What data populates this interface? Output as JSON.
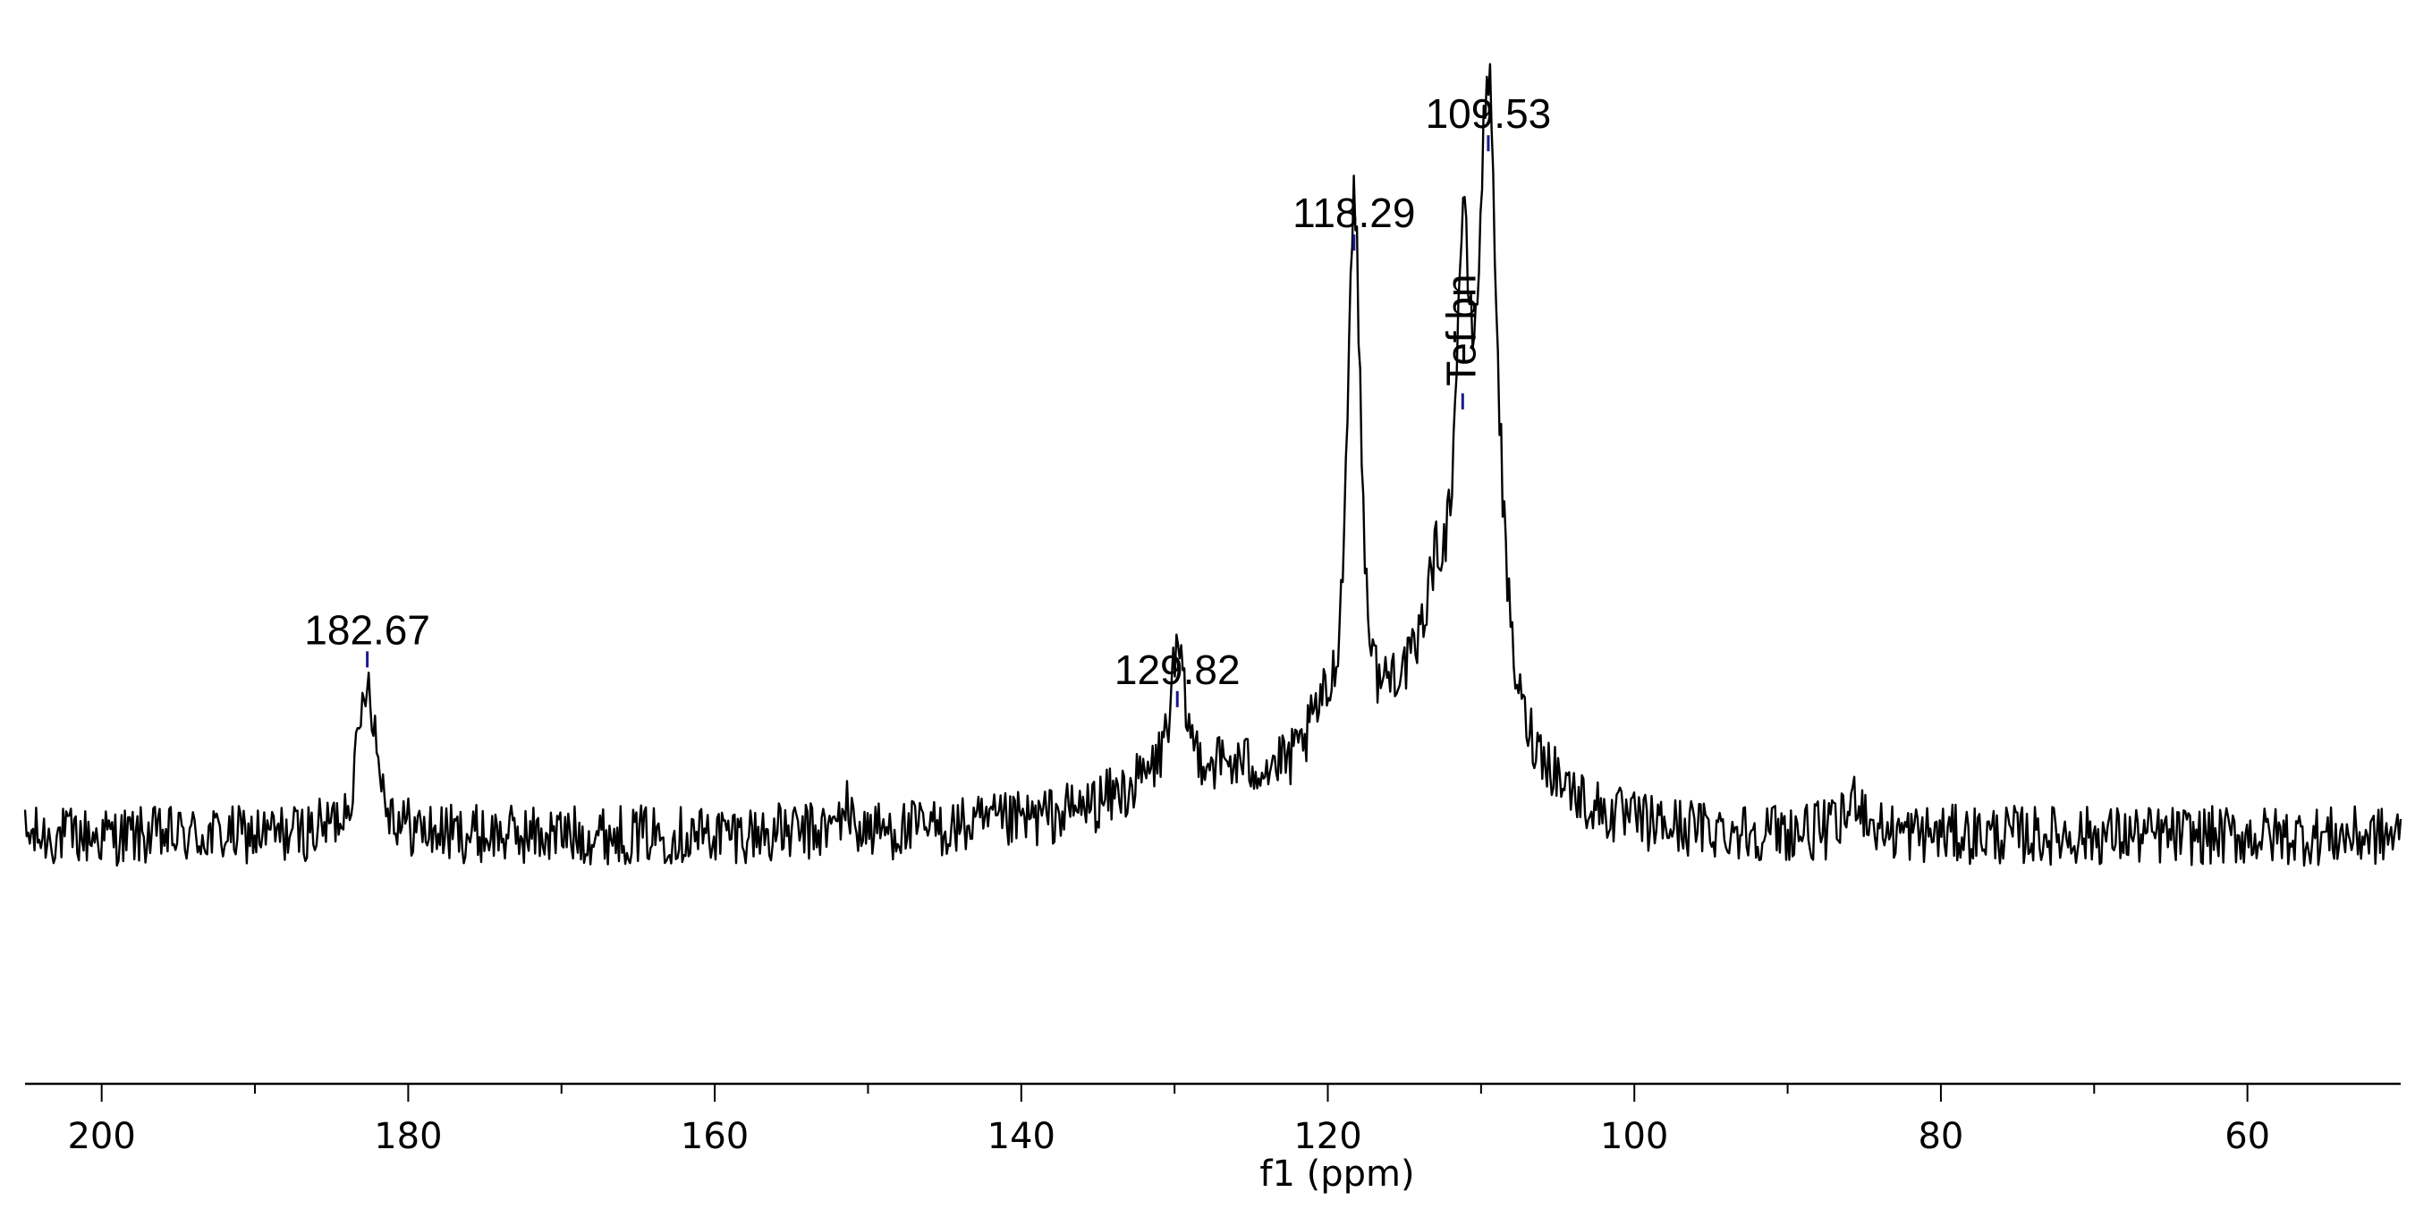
{
  "chart_data": {
    "type": "line",
    "title": "",
    "xlabel": "f1 (ppm)",
    "ylabel": "",
    "xlim": [
      205,
      50
    ],
    "x_reversed": true,
    "grid": false,
    "legend": "none",
    "x_ticks_major": [
      200,
      180,
      160,
      140,
      120,
      100,
      80,
      60
    ],
    "x_ticks_minor": [
      190,
      170,
      150,
      130,
      110,
      90,
      70
    ],
    "line_color": "#000000",
    "marker_color": "#1a1a8c",
    "baseline_level": 0.1,
    "noise_amplitude": 0.045,
    "peaks": [
      {
        "label": "182.67",
        "ppm": 182.67,
        "height": 0.34,
        "width": 0.7
      },
      {
        "label": "129.82",
        "ppm": 129.82,
        "height": 0.28,
        "width": 0.6
      },
      {
        "label": "118.29",
        "ppm": 118.29,
        "height": 0.97,
        "width": 0.55
      },
      {
        "label": "Tef bn",
        "ppm": 111.2,
        "height": 0.73,
        "width": 0.6,
        "rotated": true
      },
      {
        "label": "109.53",
        "ppm": 109.53,
        "height": 1.12,
        "width": 0.8
      }
    ]
  }
}
